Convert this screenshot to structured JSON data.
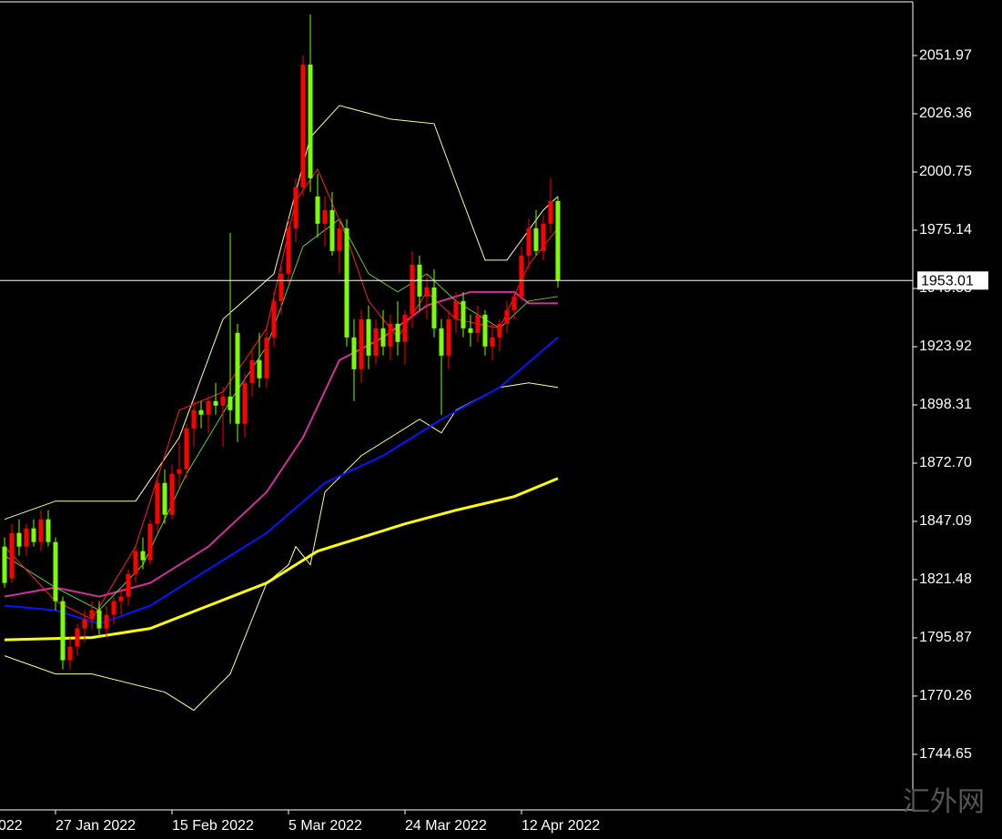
{
  "chart_data": {
    "type": "candlestick",
    "up_color": "#ff0000",
    "down_color": "#7cfc00",
    "axis_color": "#ffffff",
    "x_edge_label": "022",
    "categories": [
      null,
      null,
      null,
      null,
      null,
      null,
      null,
      "27 Jan 2022",
      null,
      null,
      null,
      null,
      null,
      null,
      null,
      null,
      null,
      null,
      null,
      null,
      null,
      null,
      null,
      "15 Feb 2022",
      null,
      null,
      null,
      null,
      null,
      null,
      null,
      null,
      null,
      null,
      null,
      null,
      null,
      null,
      null,
      "5 Mar 2022",
      null,
      null,
      null,
      null,
      null,
      null,
      null,
      null,
      null,
      null,
      null,
      null,
      null,
      null,
      null,
      "24 Mar 2022",
      null,
      null,
      null,
      null,
      null,
      null,
      null,
      null,
      null,
      null,
      null,
      null,
      null,
      null,
      null,
      "12 Apr 2022",
      null,
      null,
      null,
      null,
      null
    ],
    "open": [
      1836,
      1822,
      1842,
      1836,
      1844,
      1838,
      1848,
      1838,
      1812,
      1786,
      1792,
      1800,
      1804,
      1808,
      1800,
      1806,
      1812,
      1814,
      1824,
      1834,
      1830,
      1846,
      1864,
      1850,
      1868,
      1870,
      1888,
      1896,
      1894,
      1900,
      1898,
      1902,
      1930,
      1890,
      1908,
      1918,
      1910,
      1928,
      1944,
      1956,
      1976,
      1994,
      2048,
      1990,
      1978,
      1984,
      1966,
      1976,
      1928,
      1914,
      1936,
      1920,
      1932,
      1924,
      1934,
      1926,
      1938,
      1960,
      1946,
      1950,
      1932,
      1920,
      1936,
      1944,
      1932,
      1930,
      1938,
      1924,
      1928,
      1934,
      1940,
      1946,
      1964,
      1976,
      1966,
      1978,
      1988
    ],
    "high": [
      1840,
      1846,
      1848,
      1846,
      1848,
      1852,
      1852,
      1840,
      1814,
      1796,
      1802,
      1808,
      1812,
      1812,
      1810,
      1814,
      1818,
      1826,
      1836,
      1840,
      1848,
      1866,
      1870,
      1872,
      1882,
      1890,
      1900,
      1900,
      1902,
      1908,
      1906,
      1974,
      1934,
      1912,
      1922,
      1930,
      1932,
      1948,
      1960,
      1980,
      1998,
      2052,
      2070,
      2000,
      1990,
      1992,
      1980,
      1980,
      1936,
      1940,
      1942,
      1936,
      1940,
      1938,
      1944,
      1940,
      1966,
      1964,
      1956,
      1958,
      1936,
      1940,
      1948,
      1948,
      1938,
      1942,
      1940,
      1934,
      1936,
      1944,
      1948,
      1968,
      1980,
      1984,
      1982,
      1998,
      1990
    ],
    "low": [
      1818,
      1820,
      1832,
      1832,
      1836,
      1834,
      1836,
      1808,
      1782,
      1782,
      1788,
      1794,
      1800,
      1796,
      1796,
      1802,
      1806,
      1810,
      1820,
      1826,
      1828,
      1842,
      1846,
      1848,
      1862,
      1866,
      1880,
      1888,
      1886,
      1894,
      1880,
      1890,
      1882,
      1884,
      1902,
      1906,
      1906,
      1924,
      1938,
      1952,
      1970,
      1990,
      1992,
      1972,
      1968,
      1964,
      1956,
      1924,
      1900,
      1908,
      1914,
      1916,
      1920,
      1918,
      1920,
      1916,
      1932,
      1940,
      1936,
      1928,
      1894,
      1914,
      1930,
      1928,
      1924,
      1926,
      1920,
      1918,
      1922,
      1930,
      1936,
      1944,
      1958,
      1964,
      1962,
      1974,
      1950
    ],
    "close": [
      1820,
      1842,
      1836,
      1844,
      1838,
      1848,
      1838,
      1812,
      1786,
      1792,
      1800,
      1804,
      1808,
      1800,
      1806,
      1812,
      1814,
      1824,
      1834,
      1830,
      1846,
      1864,
      1850,
      1868,
      1870,
      1888,
      1896,
      1894,
      1900,
      1898,
      1902,
      1896,
      1890,
      1908,
      1918,
      1910,
      1928,
      1944,
      1956,
      1976,
      1994,
      2048,
      1998,
      1978,
      1984,
      1966,
      1976,
      1928,
      1914,
      1936,
      1920,
      1932,
      1924,
      1934,
      1926,
      1938,
      1960,
      1946,
      1950,
      1932,
      1920,
      1936,
      1944,
      1932,
      1930,
      1938,
      1924,
      1928,
      1934,
      1940,
      1946,
      1964,
      1976,
      1966,
      1978,
      1988,
      1953.01
    ],
    "overlays": [
      {
        "color": "#ffff99",
        "width": 1,
        "x": [
          0,
          7,
          18,
          24,
          30,
          37,
          42,
          46,
          53,
          59,
          62,
          66,
          69,
          74,
          76
        ],
        "values": [
          1848,
          1856,
          1856,
          1884,
          1936,
          1956,
          2016,
          2030,
          2024,
          2022,
          1996,
          1962,
          1962,
          1984,
          1990
        ]
      },
      {
        "color": "#ffff99",
        "width": 1,
        "x": [
          0,
          7,
          12,
          22,
          26,
          31,
          36,
          39,
          40,
          42,
          44,
          49,
          57,
          60,
          62,
          68,
          72,
          76
        ],
        "values": [
          1788,
          1780,
          1780,
          1772,
          1764,
          1780,
          1820,
          1828,
          1836,
          1828,
          1860,
          1876,
          1892,
          1886,
          1896,
          1906,
          1908,
          1906
        ]
      },
      {
        "color": "#ffff00",
        "width": 3,
        "x": [
          0,
          12,
          20,
          28,
          36,
          43,
          55,
          62,
          70,
          76
        ],
        "values": [
          1795,
          1796,
          1800,
          1810,
          1820,
          1834,
          1846,
          1852,
          1858,
          1866
        ]
      },
      {
        "color": "#0a14ff",
        "width": 2,
        "x": [
          0,
          7,
          13,
          20,
          28,
          36,
          44,
          52,
          60,
          68,
          76
        ],
        "values": [
          1810,
          1808,
          1802,
          1810,
          1826,
          1842,
          1864,
          1876,
          1892,
          1906,
          1928
        ]
      },
      {
        "color": "#d0309a",
        "width": 2,
        "x": [
          0,
          7,
          13,
          20,
          28,
          36,
          41,
          46,
          52,
          58,
          64,
          70,
          72,
          76
        ],
        "values": [
          1814,
          1818,
          1814,
          1820,
          1836,
          1860,
          1884,
          1918,
          1928,
          1942,
          1948,
          1948,
          1943,
          1943
        ]
      },
      {
        "color": "#66cc33",
        "width": 1,
        "x": [
          0,
          7,
          13,
          19,
          25,
          31,
          36,
          41,
          46,
          50,
          54,
          58,
          62,
          68,
          72,
          76
        ],
        "values": [
          1832,
          1818,
          1808,
          1828,
          1868,
          1900,
          1924,
          1968,
          1980,
          1956,
          1948,
          1956,
          1944,
          1932,
          1944,
          1946
        ]
      },
      {
        "color": "#ff2020",
        "width": 1,
        "x": [
          0,
          7,
          12,
          18,
          24,
          30,
          36,
          40,
          43,
          47,
          50,
          54,
          58,
          62,
          68,
          72,
          76
        ],
        "values": [
          1836,
          1812,
          1804,
          1836,
          1896,
          1904,
          1932,
          1988,
          2002,
          1972,
          1944,
          1928,
          1948,
          1936,
          1932,
          1960,
          1976
        ]
      }
    ],
    "ylim": [
      1720.2,
      2076.4
    ],
    "yticks": [
      2051.97,
      2026.36,
      2000.75,
      1975.14,
      1949.53,
      1923.92,
      1898.31,
      {
        "value": 1872.7,
        "label": "1872.70"
      },
      1847.09,
      1821.48,
      1795.87,
      1770.26,
      1744.65
    ],
    "current_price": 1953.01
  },
  "watermark": "汇外网"
}
